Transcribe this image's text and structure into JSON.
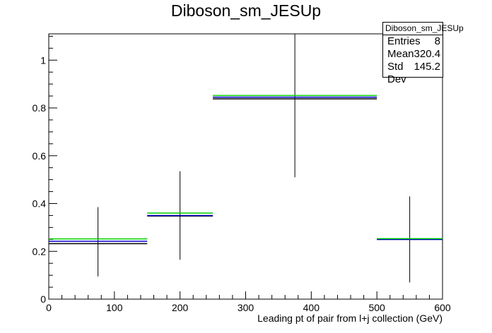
{
  "title": "Diboson_sm_JESUp",
  "stats": {
    "name": "Diboson_sm_JESUp",
    "rows": [
      {
        "label": "Entries",
        "value": "8"
      },
      {
        "label": "Mean",
        "value": "320.4"
      },
      {
        "label": "Std Dev",
        "value": "145.2"
      }
    ]
  },
  "chart_data": {
    "type": "histogram",
    "title": "Diboson_sm_JESUp",
    "xlabel": "Leading pt of pair from l+j collection (GeV)",
    "ylabel": "",
    "xlim": [
      0,
      600
    ],
    "ylim": [
      0,
      1.11
    ],
    "x_ticks": [
      0,
      100,
      200,
      300,
      400,
      500,
      600
    ],
    "y_ticks": [
      0,
      0.2,
      0.4,
      0.6,
      0.8,
      1
    ],
    "bins": [
      {
        "xlow": 0,
        "xhigh": 150,
        "center": 75,
        "value": 0.24,
        "err_low": 0.095,
        "err_high": 0.385
      },
      {
        "xlow": 150,
        "xhigh": 250,
        "center": 200,
        "value": 0.35,
        "err_low": 0.165,
        "err_high": 0.535
      },
      {
        "xlow": 250,
        "xhigh": 500,
        "center": 375,
        "value": 0.845,
        "err_low": 0.51,
        "err_high": 1.11
      },
      {
        "xlow": 500,
        "xhigh": 600,
        "center": 550,
        "value": 0.25,
        "err_low": 0.07,
        "err_high": 0.43
      }
    ],
    "variant_lines": [
      {
        "color": "#000000",
        "values": [
          0.232,
          0.348,
          0.838,
          0.25
        ]
      },
      {
        "color": "#0000cc",
        "values": [
          0.242,
          0.35,
          0.845,
          0.25
        ]
      },
      {
        "color": "#00cc00",
        "values": [
          0.252,
          0.36,
          0.852,
          0.253
        ]
      }
    ],
    "grid": false,
    "legend": "top-right"
  }
}
